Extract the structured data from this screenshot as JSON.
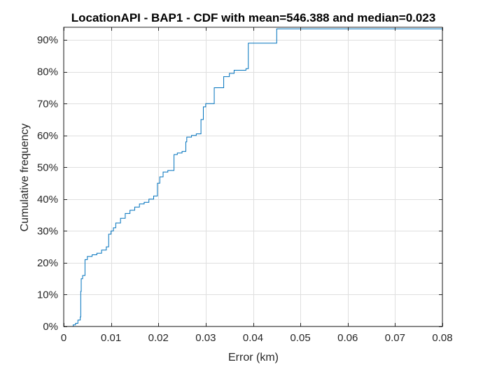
{
  "chart_data": {
    "type": "line",
    "title": "LocationAPI - BAP1 - CDF with mean=546.388 and median=0.023",
    "xlabel": "Error (km)",
    "ylabel": "Cumulative frequency",
    "xlim": [
      0,
      0.08
    ],
    "ylim": [
      0,
      94
    ],
    "xticks": [
      0,
      0.01,
      0.02,
      0.03,
      0.04,
      0.05,
      0.06,
      0.07,
      0.08
    ],
    "xtick_labels": [
      "0",
      "0.01",
      "0.02",
      "0.03",
      "0.04",
      "0.05",
      "0.06",
      "0.07",
      "0.08"
    ],
    "yticks": [
      0,
      10,
      20,
      30,
      40,
      50,
      60,
      70,
      80,
      90
    ],
    "ytick_labels": [
      "0%",
      "10%",
      "20%",
      "30%",
      "40%",
      "50%",
      "60%",
      "70%",
      "80%",
      "90%"
    ],
    "grid": true,
    "line_color": "#0072bd",
    "series": [
      {
        "x": [
          0.0016,
          0.002,
          0.0025,
          0.003,
          0.0035,
          0.0036,
          0.0037,
          0.004,
          0.0045,
          0.005,
          0.006,
          0.007,
          0.008,
          0.009,
          0.0095,
          0.01,
          0.0105,
          0.011,
          0.012,
          0.013,
          0.014,
          0.015,
          0.016,
          0.017,
          0.018,
          0.019,
          0.0198,
          0.0203,
          0.021,
          0.022,
          0.023,
          0.0233,
          0.024,
          0.025,
          0.0258,
          0.026,
          0.027,
          0.028,
          0.029,
          0.0295,
          0.03,
          0.0305,
          0.0318,
          0.033,
          0.0338,
          0.035,
          0.036,
          0.0375,
          0.0385,
          0.039,
          0.043,
          0.045,
          0.05,
          0.06,
          0.07,
          0.08
        ],
        "y": [
          0,
          0.5,
          1,
          2,
          3,
          11,
          15,
          16,
          21,
          22,
          22.5,
          23,
          24,
          25,
          29,
          30,
          31,
          32.5,
          34,
          35.5,
          36.5,
          37.5,
          38.5,
          39,
          40,
          41,
          45,
          47,
          48.5,
          49,
          49,
          54,
          54.5,
          55,
          58,
          59.5,
          60,
          60.5,
          65,
          69,
          70,
          70,
          75,
          75,
          78.5,
          79.5,
          80.5,
          80.5,
          81,
          89,
          89,
          93.5,
          93.5,
          93.5,
          93.5,
          93.5
        ]
      }
    ]
  }
}
